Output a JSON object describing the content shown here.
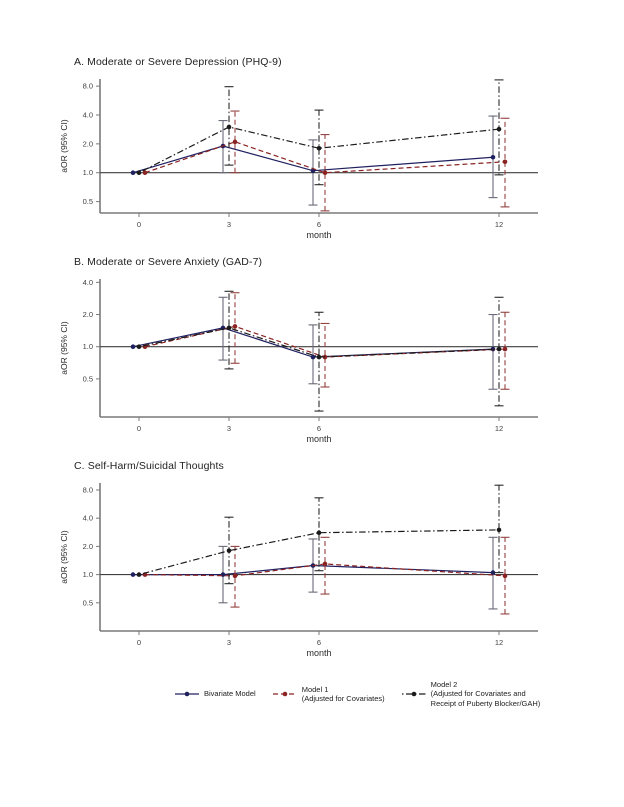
{
  "figure_title": "",
  "legend": {
    "position": "bottom",
    "items": [
      {
        "label": "Bivariate Model",
        "color": "#1f2060",
        "linestyle": "solid"
      },
      {
        "label": "Model 1\n(Adjusted for Covariates)",
        "color": "#8b2322",
        "linestyle": "dashed"
      },
      {
        "label": "Model 2\n(Adjusted for Covariates and\nReceipt of Puberty Blocker/GAH)",
        "color": "#1b1b1b",
        "linestyle": "dashdot"
      }
    ]
  },
  "colors": {
    "axis": "#7a7a7a",
    "tick_text": "#3f3f3f",
    "reference_line": "#3f3f3f",
    "bivariate": "#1f2060",
    "model1": "#8b2322",
    "model2": "#1b1b1b"
  },
  "chart_data": [
    {
      "type": "line",
      "title": "A. Moderate or Severe Depression (PHQ-9)",
      "xlabel": "month",
      "ylabel": "aOR (95% CI)",
      "x_ticks": [
        0,
        3,
        6,
        12
      ],
      "y_ticks": [
        0.5,
        1.0,
        2.0,
        4.0,
        8.0
      ],
      "y_scale": "log",
      "xlim": [
        -1.3,
        13.3
      ],
      "ylim": [
        0.38,
        9.5
      ],
      "reference_line": 1.0,
      "grid": false,
      "series": [
        {
          "name": "Bivariate Model",
          "color": "#1f2060",
          "ci_color": "#6a6a78",
          "linestyle": "solid",
          "points": [
            {
              "month": 0,
              "aOR": 1.0
            },
            {
              "month": 3,
              "aOR": 1.9,
              "ci": [
                1.0,
                3.5
              ]
            },
            {
              "month": 6,
              "aOR": 1.05,
              "ci": [
                0.46,
                2.2
              ]
            },
            {
              "month": 12,
              "aOR": 1.45,
              "ci": [
                0.55,
                3.9
              ]
            }
          ]
        },
        {
          "name": "Model 1",
          "color": "#8b2322",
          "ci_color": "#93423f",
          "linestyle": "dashed",
          "points": [
            {
              "month": 0,
              "aOR": 1.0
            },
            {
              "month": 3,
              "aOR": 2.1,
              "ci": [
                1.0,
                4.4
              ]
            },
            {
              "month": 6,
              "aOR": 1.0,
              "ci": [
                0.4,
                2.5
              ]
            },
            {
              "month": 12,
              "aOR": 1.3,
              "ci": [
                0.44,
                3.7
              ]
            }
          ]
        },
        {
          "name": "Model 2",
          "color": "#1b1b1b",
          "ci_color": "#2a2a2a",
          "linestyle": "dashdot",
          "points": [
            {
              "month": 0,
              "aOR": 1.0
            },
            {
              "month": 3,
              "aOR": 3.0,
              "ci": [
                1.2,
                7.9
              ]
            },
            {
              "month": 6,
              "aOR": 1.8,
              "ci": [
                0.75,
                4.5
              ]
            },
            {
              "month": 12,
              "aOR": 2.85,
              "ci": [
                0.95,
                9.3
              ]
            }
          ]
        }
      ]
    },
    {
      "type": "line",
      "title": "B. Moderate or Severe Anxiety (GAD-7)",
      "xlabel": "month",
      "ylabel": "aOR (95% CI)",
      "x_ticks": [
        0,
        3,
        6,
        12
      ],
      "y_ticks": [
        0.5,
        1.0,
        2.0,
        4.0
      ],
      "y_scale": "log",
      "xlim": [
        -1.3,
        13.3
      ],
      "ylim": [
        0.22,
        4.3
      ],
      "reference_line": 1.0,
      "grid": false,
      "series": [
        {
          "name": "Bivariate Model",
          "color": "#1f2060",
          "ci_color": "#6a6a78",
          "linestyle": "solid",
          "points": [
            {
              "month": 0,
              "aOR": 1.0
            },
            {
              "month": 3,
              "aOR": 1.5,
              "ci": [
                0.75,
                2.9
              ]
            },
            {
              "month": 6,
              "aOR": 0.8,
              "ci": [
                0.45,
                1.6
              ]
            },
            {
              "month": 12,
              "aOR": 0.95,
              "ci": [
                0.4,
                2.0
              ]
            }
          ]
        },
        {
          "name": "Model 1",
          "color": "#8b2322",
          "ci_color": "#93423f",
          "linestyle": "dashed",
          "points": [
            {
              "month": 0,
              "aOR": 1.0
            },
            {
              "month": 3,
              "aOR": 1.55,
              "ci": [
                0.7,
                3.2
              ]
            },
            {
              "month": 6,
              "aOR": 0.8,
              "ci": [
                0.42,
                1.65
              ]
            },
            {
              "month": 12,
              "aOR": 0.95,
              "ci": [
                0.4,
                2.1
              ]
            }
          ]
        },
        {
          "name": "Model 2",
          "color": "#1b1b1b",
          "ci_color": "#2a2a2a",
          "linestyle": "dashdot",
          "points": [
            {
              "month": 0,
              "aOR": 1.0
            },
            {
              "month": 3,
              "aOR": 1.5,
              "ci": [
                0.62,
                3.3
              ]
            },
            {
              "month": 6,
              "aOR": 0.8,
              "ci": [
                0.25,
                2.1
              ]
            },
            {
              "month": 12,
              "aOR": 0.95,
              "ci": [
                0.28,
                2.9
              ]
            }
          ]
        }
      ]
    },
    {
      "type": "line",
      "title": "C. Self-Harm/Suicidal Thoughts",
      "xlabel": "month",
      "ylabel": "aOR (95% CI)",
      "x_ticks": [
        0,
        3,
        6,
        12
      ],
      "y_ticks": [
        0.5,
        1.0,
        2.0,
        4.0,
        8.0
      ],
      "y_scale": "log",
      "xlim": [
        -1.3,
        13.3
      ],
      "ylim": [
        0.25,
        9.5
      ],
      "reference_line": 1.0,
      "grid": false,
      "series": [
        {
          "name": "Bivariate Model",
          "color": "#1f2060",
          "ci_color": "#6a6a78",
          "linestyle": "solid",
          "points": [
            {
              "month": 0,
              "aOR": 1.0
            },
            {
              "month": 3,
              "aOR": 1.0,
              "ci": [
                0.5,
                2.0
              ]
            },
            {
              "month": 6,
              "aOR": 1.25,
              "ci": [
                0.65,
                2.4
              ]
            },
            {
              "month": 12,
              "aOR": 1.05,
              "ci": [
                0.43,
                2.5
              ]
            }
          ]
        },
        {
          "name": "Model 1",
          "color": "#8b2322",
          "ci_color": "#93423f",
          "linestyle": "dashed",
          "points": [
            {
              "month": 0,
              "aOR": 1.0
            },
            {
              "month": 3,
              "aOR": 0.97,
              "ci": [
                0.45,
                2.0
              ]
            },
            {
              "month": 6,
              "aOR": 1.3,
              "ci": [
                0.62,
                2.5
              ]
            },
            {
              "month": 12,
              "aOR": 0.97,
              "ci": [
                0.38,
                2.5
              ]
            }
          ]
        },
        {
          "name": "Model 2",
          "color": "#1b1b1b",
          "ci_color": "#2a2a2a",
          "linestyle": "dashdot",
          "points": [
            {
              "month": 0,
              "aOR": 1.0
            },
            {
              "month": 3,
              "aOR": 1.8,
              "ci": [
                0.8,
                4.1
              ]
            },
            {
              "month": 6,
              "aOR": 2.8,
              "ci": [
                1.1,
                6.6
              ]
            },
            {
              "month": 12,
              "aOR": 3.0,
              "ci": [
                1.05,
                9.0
              ]
            }
          ]
        }
      ]
    }
  ]
}
